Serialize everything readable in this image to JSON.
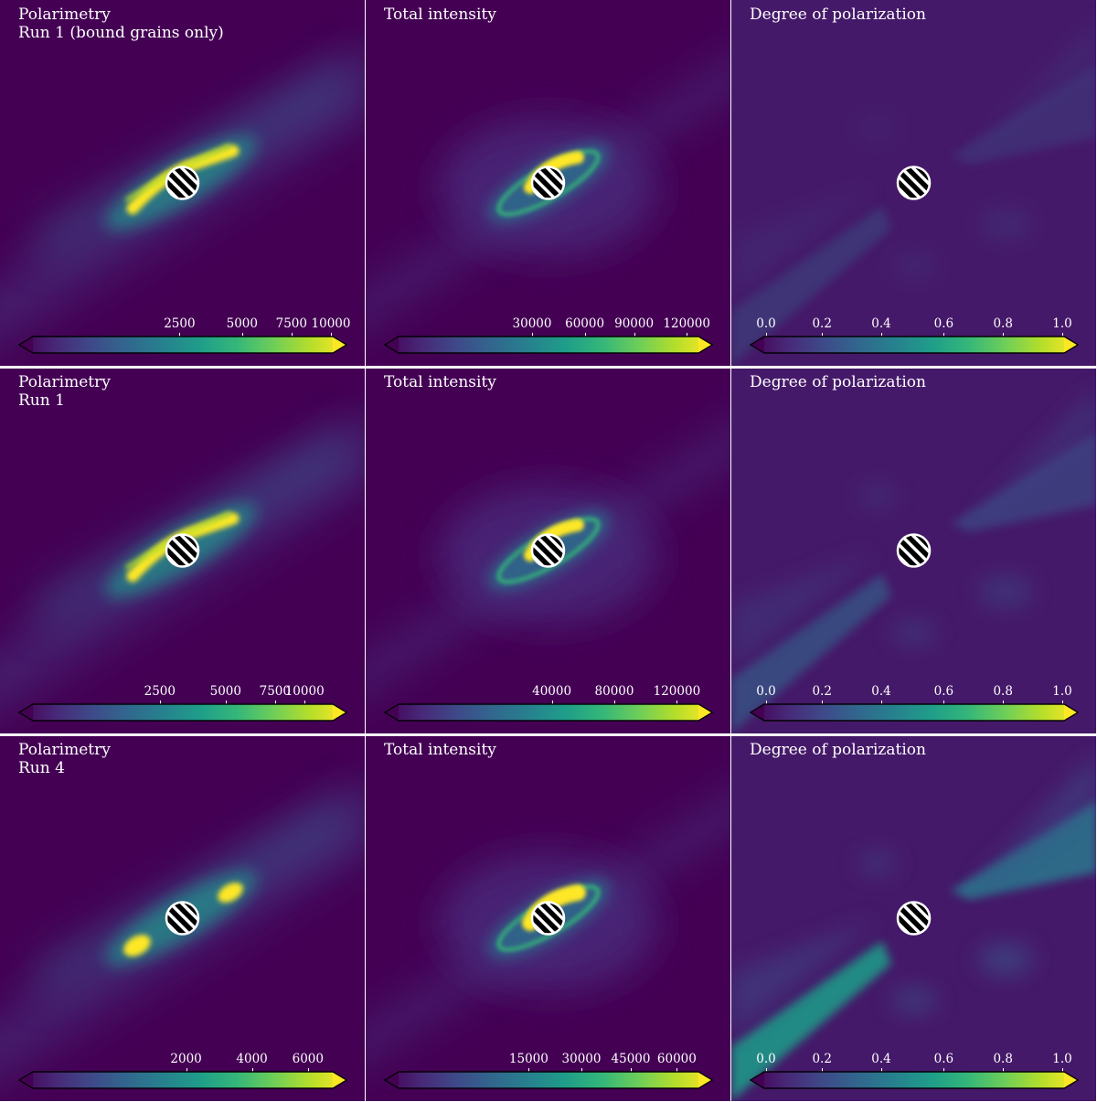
{
  "rows": [
    {
      "panels": [
        {
          "title": "Polarimetry\nRun 1 (bound grains only)",
          "kind": "polarimetry",
          "variant": "full-arc",
          "colorbar": {
            "ticks": [
              "2500",
              "5000",
              "7500",
              "10000"
            ],
            "tick_fracs": [
              0.49,
              0.68,
              0.83,
              0.95
            ]
          }
        },
        {
          "title": "Total intensity",
          "kind": "intensity",
          "variant": "ring",
          "colorbar": {
            "ticks": [
              "30000",
              "60000",
              "90000",
              "120000"
            ],
            "tick_fracs": [
              0.45,
              0.61,
              0.76,
              0.92
            ]
          }
        },
        {
          "title": "Degree of polarization",
          "kind": "degree",
          "variant": "faint",
          "colorbar": {
            "ticks": [
              "0.0",
              "0.2",
              "0.4",
              "0.6",
              "0.8",
              "1.0"
            ],
            "tick_fracs": [
              0.05,
              0.22,
              0.4,
              0.59,
              0.77,
              0.95
            ]
          }
        }
      ]
    },
    {
      "panels": [
        {
          "title": "Polarimetry\nRun 1",
          "kind": "polarimetry",
          "variant": "full-arc",
          "colorbar": {
            "ticks": [
              "2500",
              "5000",
              "7500",
              "10000"
            ],
            "tick_fracs": [
              0.43,
              0.63,
              0.78,
              0.87
            ]
          }
        },
        {
          "title": "Total intensity",
          "kind": "intensity",
          "variant": "ring",
          "colorbar": {
            "ticks": [
              "40000",
              "80000",
              "120000"
            ],
            "tick_fracs": [
              0.51,
              0.7,
              0.89
            ]
          }
        },
        {
          "title": "Degree of polarization",
          "kind": "degree",
          "variant": "medium",
          "colorbar": {
            "ticks": [
              "0.0",
              "0.2",
              "0.4",
              "0.6",
              "0.8",
              "1.0"
            ],
            "tick_fracs": [
              0.05,
              0.22,
              0.4,
              0.59,
              0.77,
              0.95
            ]
          }
        }
      ]
    },
    {
      "panels": [
        {
          "title": "Polarimetry\nRun 4",
          "kind": "polarimetry",
          "variant": "blobs",
          "colorbar": {
            "ticks": [
              "2000",
              "4000",
              "6000"
            ],
            "tick_fracs": [
              0.51,
              0.71,
              0.88
            ]
          }
        },
        {
          "title": "Total intensity",
          "kind": "intensity",
          "variant": "ring-bright",
          "colorbar": {
            "ticks": [
              "15000",
              "30000",
              "45000",
              "60000"
            ],
            "tick_fracs": [
              0.44,
              0.6,
              0.75,
              0.89
            ]
          }
        },
        {
          "title": "Degree of polarization",
          "kind": "degree",
          "variant": "strong",
          "colorbar": {
            "ticks": [
              "0.0",
              "0.2",
              "0.4",
              "0.6",
              "0.8",
              "1.0"
            ],
            "tick_fracs": [
              0.05,
              0.22,
              0.4,
              0.59,
              0.77,
              0.95
            ]
          }
        }
      ]
    }
  ],
  "colormap": {
    "name": "viridis",
    "stops": [
      "#440154",
      "#482878",
      "#3e4a89",
      "#31688e",
      "#26828e",
      "#1f9e89",
      "#35b779",
      "#6ece58",
      "#b5de2b",
      "#fde725"
    ]
  },
  "mask_icon": "hatched-circle-icon"
}
